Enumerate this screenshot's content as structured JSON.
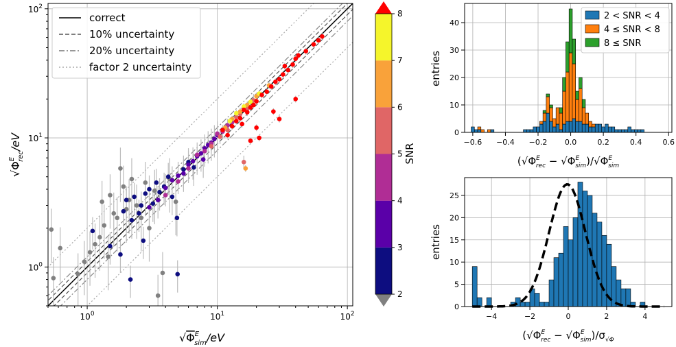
{
  "chart_data": [
    {
      "type": "scatter",
      "xlabel": "√Φ^E_sim/eV",
      "ylabel": "√Φ^E_rec/eV",
      "xscale": "log",
      "yscale": "log",
      "xlim": [
        0.5,
        110
      ],
      "ylim": [
        0.5,
        110
      ],
      "x_ticks": [
        "10^0",
        "10^1",
        "10^2"
      ],
      "y_ticks": [
        "10^0",
        "10^1",
        "10^2"
      ],
      "grid": true,
      "legend_position": "top-left",
      "legend": [
        {
          "label": "correct",
          "style": "solid",
          "color": "#000000"
        },
        {
          "label": "10% uncertainty",
          "style": "dashed",
          "color": "#555555"
        },
        {
          "label": "20% uncertainty",
          "style": "dashdot",
          "color": "#777777"
        },
        {
          "label": "factor 2 uncertainty",
          "style": "dotted",
          "color": "#aaaaaa"
        }
      ],
      "colorbar": {
        "label": "SNR",
        "ticks": [
          "2",
          "3",
          "4",
          "5",
          "6",
          "7",
          "8"
        ],
        "bins": [
          {
            "from": 2,
            "to": 3,
            "color": "#0d0d80"
          },
          {
            "from": 3,
            "to": 4,
            "color": "#5a00a8"
          },
          {
            "from": 4,
            "to": 5,
            "color": "#b02d95"
          },
          {
            "from": 5,
            "to": 6,
            "color": "#e06666"
          },
          {
            "from": 6,
            "to": 7,
            "color": "#f9a23a"
          },
          {
            "from": 7,
            "to": 8,
            "color": "#f5f52b"
          }
        ],
        "under_color": "#808080",
        "over_color": "#ff0000"
      },
      "points": [
        {
          "x": 0.53,
          "y": 1.95,
          "snr": 1.5
        },
        {
          "x": 0.55,
          "y": 0.82,
          "snr": 1.5
        },
        {
          "x": 0.62,
          "y": 1.4,
          "snr": 1.5
        },
        {
          "x": 0.85,
          "y": 0.88,
          "snr": 1.5
        },
        {
          "x": 0.95,
          "y": 1.1,
          "snr": 1.5
        },
        {
          "x": 1.05,
          "y": 1.3,
          "snr": 1.5
        },
        {
          "x": 1.15,
          "y": 1.5,
          "snr": 1.5
        },
        {
          "x": 1.25,
          "y": 1.7,
          "snr": 1.5
        },
        {
          "x": 1.35,
          "y": 2.1,
          "snr": 1.5
        },
        {
          "x": 1.5,
          "y": 3.6,
          "snr": 1.5
        },
        {
          "x": 1.6,
          "y": 2.6,
          "snr": 1.5
        },
        {
          "x": 1.7,
          "y": 2.4,
          "snr": 1.5
        },
        {
          "x": 1.8,
          "y": 5.8,
          "snr": 1.5
        },
        {
          "x": 1.9,
          "y": 4.2,
          "snr": 1.5
        },
        {
          "x": 2.1,
          "y": 3.3,
          "snr": 1.5
        },
        {
          "x": 2.2,
          "y": 4.8,
          "snr": 1.5
        },
        {
          "x": 2.4,
          "y": 3.0,
          "snr": 1.5
        },
        {
          "x": 2.6,
          "y": 2.4,
          "snr": 1.5
        },
        {
          "x": 2.8,
          "y": 4.5,
          "snr": 1.5
        },
        {
          "x": 3.0,
          "y": 2.0,
          "snr": 1.5
        },
        {
          "x": 3.3,
          "y": 3.9,
          "snr": 1.5
        },
        {
          "x": 3.5,
          "y": 0.6,
          "snr": 1.5
        },
        {
          "x": 3.8,
          "y": 0.9,
          "snr": 1.5
        },
        {
          "x": 4.3,
          "y": 4.8,
          "snr": 1.5
        },
        {
          "x": 4.8,
          "y": 3.2,
          "snr": 1.5
        },
        {
          "x": 1.3,
          "y": 3.2,
          "snr": 1.5
        },
        {
          "x": 2.0,
          "y": 2.8,
          "snr": 1.5
        },
        {
          "x": 1.45,
          "y": 1.2,
          "snr": 1.5
        },
        {
          "x": 1.1,
          "y": 1.9,
          "snr": 2.5
        },
        {
          "x": 1.5,
          "y": 1.45,
          "snr": 2.5
        },
        {
          "x": 1.8,
          "y": 1.25,
          "snr": 2.5
        },
        {
          "x": 1.9,
          "y": 2.7,
          "snr": 2.5
        },
        {
          "x": 2.0,
          "y": 3.3,
          "snr": 2.5
        },
        {
          "x": 2.2,
          "y": 2.3,
          "snr": 2.5
        },
        {
          "x": 2.15,
          "y": 0.8,
          "snr": 2.5
        },
        {
          "x": 2.3,
          "y": 3.5,
          "snr": 2.5
        },
        {
          "x": 2.5,
          "y": 2.6,
          "snr": 2.5
        },
        {
          "x": 2.6,
          "y": 3.0,
          "snr": 2.5
        },
        {
          "x": 2.8,
          "y": 3.7,
          "snr": 2.5
        },
        {
          "x": 3.0,
          "y": 4.0,
          "snr": 2.5
        },
        {
          "x": 3.2,
          "y": 3.1,
          "snr": 2.5
        },
        {
          "x": 3.4,
          "y": 4.5,
          "snr": 2.5
        },
        {
          "x": 3.6,
          "y": 3.8,
          "snr": 2.5
        },
        {
          "x": 3.9,
          "y": 4.2,
          "snr": 2.5
        },
        {
          "x": 4.2,
          "y": 5.0,
          "snr": 2.5
        },
        {
          "x": 4.5,
          "y": 3.5,
          "snr": 2.5
        },
        {
          "x": 4.9,
          "y": 2.4,
          "snr": 2.5
        },
        {
          "x": 4.95,
          "y": 0.88,
          "snr": 2.5
        },
        {
          "x": 5.5,
          "y": 5.7,
          "snr": 2.5
        },
        {
          "x": 6.0,
          "y": 6.5,
          "snr": 2.5
        },
        {
          "x": 6.6,
          "y": 5.9,
          "snr": 2.5
        },
        {
          "x": 2.7,
          "y": 1.6,
          "snr": 2.5
        },
        {
          "x": 3.0,
          "y": 2.9,
          "snr": 3.5
        },
        {
          "x": 3.5,
          "y": 3.3,
          "snr": 3.5
        },
        {
          "x": 4.0,
          "y": 4.1,
          "snr": 3.5
        },
        {
          "x": 4.5,
          "y": 4.7,
          "snr": 3.5
        },
        {
          "x": 5.0,
          "y": 5.1,
          "snr": 3.5
        },
        {
          "x": 5.5,
          "y": 5.3,
          "snr": 3.5
        },
        {
          "x": 6.0,
          "y": 6.2,
          "snr": 3.5
        },
        {
          "x": 6.5,
          "y": 6.6,
          "snr": 3.5
        },
        {
          "x": 7.0,
          "y": 7.2,
          "snr": 3.5
        },
        {
          "x": 7.5,
          "y": 7.6,
          "snr": 3.5
        },
        {
          "x": 8.0,
          "y": 8.3,
          "snr": 3.5
        },
        {
          "x": 8.5,
          "y": 8.8,
          "snr": 3.5
        },
        {
          "x": 9.0,
          "y": 9.2,
          "snr": 3.5
        },
        {
          "x": 9.5,
          "y": 9.8,
          "snr": 3.5
        },
        {
          "x": 10.0,
          "y": 10.5,
          "snr": 3.5
        },
        {
          "x": 7.8,
          "y": 6.8,
          "snr": 3.5
        },
        {
          "x": 4.0,
          "y": 3.6,
          "snr": 4.5
        },
        {
          "x": 5.0,
          "y": 4.6,
          "snr": 4.5
        },
        {
          "x": 6.0,
          "y": 5.8,
          "snr": 4.5
        },
        {
          "x": 7.0,
          "y": 7.4,
          "snr": 4.5
        },
        {
          "x": 8.0,
          "y": 7.9,
          "snr": 4.5
        },
        {
          "x": 9.0,
          "y": 9.0,
          "snr": 4.5
        },
        {
          "x": 10.0,
          "y": 10.8,
          "snr": 4.5
        },
        {
          "x": 11.0,
          "y": 11.2,
          "snr": 4.5
        },
        {
          "x": 12.0,
          "y": 12.5,
          "snr": 4.5
        },
        {
          "x": 13.0,
          "y": 13.2,
          "snr": 4.5
        },
        {
          "x": 9.0,
          "y": 8.6,
          "snr": 5.5
        },
        {
          "x": 10.5,
          "y": 10.2,
          "snr": 5.5
        },
        {
          "x": 12.0,
          "y": 11.5,
          "snr": 5.5
        },
        {
          "x": 14.0,
          "y": 14.5,
          "snr": 5.5
        },
        {
          "x": 15.0,
          "y": 15.3,
          "snr": 5.5
        },
        {
          "x": 17.0,
          "y": 16.8,
          "snr": 5.5
        },
        {
          "x": 19.0,
          "y": 19.5,
          "snr": 5.5
        },
        {
          "x": 16.0,
          "y": 6.5,
          "snr": 5.5
        },
        {
          "x": 13.0,
          "y": 14.0,
          "snr": 6.5
        },
        {
          "x": 15.0,
          "y": 16.0,
          "snr": 6.5
        },
        {
          "x": 17.0,
          "y": 18.0,
          "snr": 6.5
        },
        {
          "x": 20.0,
          "y": 21.0,
          "snr": 6.5
        },
        {
          "x": 25.0,
          "y": 25.5,
          "snr": 6.5
        },
        {
          "x": 16.5,
          "y": 5.8,
          "snr": 6.5
        },
        {
          "x": 11.5,
          "y": 12.0,
          "snr": 6.5
        },
        {
          "x": 14.0,
          "y": 15.5,
          "snr": 7.5
        },
        {
          "x": 16.0,
          "y": 17.5,
          "snr": 7.5
        },
        {
          "x": 18.0,
          "y": 19.0,
          "snr": 7.5
        },
        {
          "x": 21.0,
          "y": 22.0,
          "snr": 7.5
        },
        {
          "x": 12.5,
          "y": 13.5,
          "snr": 7.5
        },
        {
          "x": 11.0,
          "y": 11.5,
          "snr": 8.5
        },
        {
          "x": 12.0,
          "y": 10.5,
          "snr": 8.5
        },
        {
          "x": 13.0,
          "y": 12.3,
          "snr": 8.5
        },
        {
          "x": 14.0,
          "y": 13.5,
          "snr": 8.5
        },
        {
          "x": 15.0,
          "y": 14.2,
          "snr": 8.5
        },
        {
          "x": 16.0,
          "y": 16.5,
          "snr": 8.5
        },
        {
          "x": 17.0,
          "y": 15.8,
          "snr": 8.5
        },
        {
          "x": 18.0,
          "y": 17.2,
          "snr": 8.5
        },
        {
          "x": 19.0,
          "y": 18.0,
          "snr": 8.5
        },
        {
          "x": 20.0,
          "y": 19.2,
          "snr": 8.5
        },
        {
          "x": 22.0,
          "y": 21.5,
          "snr": 8.5
        },
        {
          "x": 24.0,
          "y": 22.8,
          "snr": 8.5
        },
        {
          "x": 26.0,
          "y": 25.0,
          "snr": 8.5
        },
        {
          "x": 28.0,
          "y": 27.2,
          "snr": 8.5
        },
        {
          "x": 30.0,
          "y": 28.5,
          "snr": 8.5
        },
        {
          "x": 32.0,
          "y": 31.0,
          "snr": 8.5
        },
        {
          "x": 35.0,
          "y": 33.5,
          "snr": 8.5
        },
        {
          "x": 38.0,
          "y": 37.0,
          "snr": 8.5
        },
        {
          "x": 40.0,
          "y": 41.0,
          "snr": 8.5
        },
        {
          "x": 42.0,
          "y": 43.5,
          "snr": 8.5
        },
        {
          "x": 48.0,
          "y": 47.0,
          "snr": 8.5
        },
        {
          "x": 55.0,
          "y": 53.0,
          "snr": 8.5
        },
        {
          "x": 60.0,
          "y": 57.0,
          "snr": 8.5
        },
        {
          "x": 64.0,
          "y": 61.0,
          "snr": 8.5
        },
        {
          "x": 27.0,
          "y": 16.0,
          "snr": 8.5
        },
        {
          "x": 30.0,
          "y": 14.0,
          "snr": 8.5
        },
        {
          "x": 40.0,
          "y": 20.0,
          "snr": 8.5
        },
        {
          "x": 18.0,
          "y": 9.5,
          "snr": 8.5
        },
        {
          "x": 20.0,
          "y": 12.0,
          "snr": 8.5
        },
        {
          "x": 21.0,
          "y": 10.0,
          "snr": 8.5
        },
        {
          "x": 15.5,
          "y": 12.8,
          "snr": 8.5
        },
        {
          "x": 33.0,
          "y": 36.0,
          "snr": 8.5
        }
      ]
    },
    {
      "type": "bar",
      "stacked": true,
      "xlabel": "(√Φ^E_rec − √Φ^E_sim)/√Φ^E_sim",
      "ylabel": "entries",
      "xlim": [
        -0.65,
        0.62
      ],
      "ylim": [
        0,
        47
      ],
      "x_ticks": [
        "−0.6",
        "−0.4",
        "−0.2",
        "0.0",
        "0.2",
        "0.4",
        "0.6"
      ],
      "y_ticks": [
        "0",
        "10",
        "20",
        "30",
        "40"
      ],
      "grid": true,
      "legend_position": "top-right",
      "bin_start": -0.61,
      "bin_width": 0.02,
      "series": [
        {
          "name": "2 < SNR < 4",
          "color": "#1f77b4",
          "values": [
            2,
            1,
            1,
            0,
            0,
            0,
            1,
            0,
            0,
            0,
            0,
            0,
            0,
            0,
            0,
            0,
            1,
            1,
            1,
            2,
            2,
            3,
            4,
            7,
            4,
            2,
            3,
            1,
            3,
            4,
            4,
            5,
            4,
            4,
            3,
            3,
            2,
            2,
            3,
            3,
            2,
            3,
            2,
            2,
            1,
            1,
            1,
            1,
            2,
            1,
            1,
            1,
            1,
            0,
            0,
            0,
            0,
            0,
            0,
            0,
            0,
            0
          ]
        },
        {
          "name": "4 ≤ SNR < 8",
          "color": "#ff7f0e",
          "values": [
            0,
            0,
            1,
            1,
            0,
            1,
            0,
            0,
            0,
            0,
            0,
            0,
            0,
            0,
            0,
            0,
            0,
            0,
            0,
            0,
            0,
            1,
            3,
            6,
            5,
            3,
            6,
            6,
            12,
            18,
            25,
            20,
            8,
            12,
            6,
            4,
            2,
            1,
            0,
            0,
            0,
            0,
            0,
            0,
            0,
            0,
            0,
            0,
            0,
            0,
            0,
            0,
            0,
            0,
            0,
            0,
            0,
            0,
            0,
            0,
            0,
            0
          ]
        },
        {
          "name": "8 ≤ SNR",
          "color": "#2ca02c",
          "values": [
            0,
            0,
            0,
            0,
            0,
            0,
            0,
            0,
            0,
            0,
            0,
            0,
            0,
            0,
            0,
            0,
            0,
            0,
            0,
            0,
            0,
            0,
            1,
            1,
            1,
            0,
            0,
            2,
            5,
            11,
            16,
            9,
            3,
            4,
            3,
            0,
            0,
            0,
            0,
            0,
            0,
            0,
            0,
            0,
            0,
            0,
            0,
            0,
            0,
            0,
            0,
            0,
            0,
            0,
            0,
            0,
            0,
            0,
            0,
            0,
            0,
            0
          ]
        }
      ]
    },
    {
      "type": "bar",
      "xlabel": "(√Φ^E_rec − √Φ^E_sim)/σ_√Φ",
      "ylabel": "entries",
      "xlim": [
        -5.4,
        5.4
      ],
      "ylim": [
        0,
        29
      ],
      "x_ticks": [
        "−4",
        "−2",
        "0",
        "2",
        "4"
      ],
      "y_ticks": [
        "0",
        "5",
        "10",
        "15",
        "20",
        "25"
      ],
      "grid": true,
      "bin_start": -5.0,
      "bin_width": 0.25,
      "values": [
        9,
        2,
        0,
        2,
        0,
        0,
        0,
        0,
        1,
        2,
        1,
        1,
        4,
        3,
        1,
        1,
        6,
        11,
        12,
        18,
        15,
        20,
        28,
        26,
        25,
        21,
        19,
        16,
        14,
        9,
        6,
        4,
        4,
        1,
        0,
        1,
        0,
        0,
        0,
        0,
        0
      ],
      "overlay": {
        "type": "gaussian_fit",
        "mean": -0.05,
        "sigma": 0.95,
        "peak": 27.5,
        "style": "dashed",
        "color": "#000000"
      }
    }
  ]
}
